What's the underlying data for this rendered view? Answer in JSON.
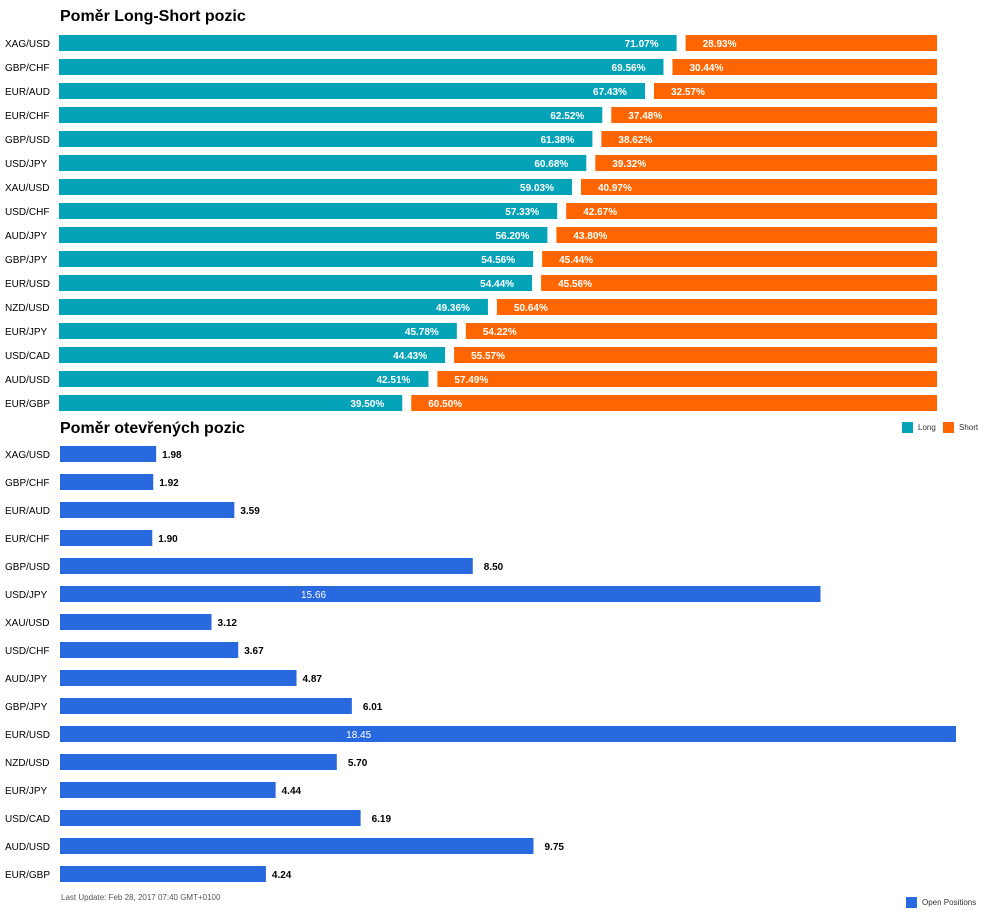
{
  "colors": {
    "long": "#05a3b8",
    "short": "#ff6600",
    "open": "#2869e0"
  },
  "long_short": {
    "title": "Poměr Long-Short pozic"
  },
  "open": {
    "title": "Poměr otevřených pozic"
  },
  "legend": {
    "long": "Long",
    "short": "Short",
    "open": "Open Positions"
  },
  "footer": {
    "last_update": "Last Update: Feb 28, 2017 07:40 GMT+0100"
  },
  "chart_data": [
    {
      "type": "bar",
      "orientation": "horizontal",
      "stacked": true,
      "title": "Poměr Long-Short pozic",
      "categories": [
        "XAG/USD",
        "GBP/CHF",
        "EUR/AUD",
        "EUR/CHF",
        "GBP/USD",
        "USD/JPY",
        "XAU/USD",
        "USD/CHF",
        "AUD/JPY",
        "GBP/JPY",
        "EUR/USD",
        "NZD/USD",
        "EUR/JPY",
        "USD/CAD",
        "AUD/USD",
        "EUR/GBP"
      ],
      "series": [
        {
          "name": "Long",
          "values": [
            71.07,
            69.56,
            67.43,
            62.52,
            61.38,
            60.68,
            59.03,
            57.33,
            56.2,
            54.56,
            54.44,
            49.36,
            45.78,
            44.43,
            42.51,
            39.5
          ],
          "labels": [
            "71.07%",
            "69.56%",
            "67.43%",
            "62.52%",
            "61.38%",
            "60.68%",
            "59.03%",
            "57.33%",
            "56.20%",
            "54.56%",
            "54.44%",
            "49.36%",
            "45.78%",
            "44.43%",
            "42.51%",
            "39.50%"
          ]
        },
        {
          "name": "Short",
          "values": [
            28.93,
            30.44,
            32.57,
            37.48,
            38.62,
            39.32,
            40.97,
            42.67,
            43.8,
            45.44,
            45.56,
            50.64,
            54.22,
            55.57,
            57.49,
            60.5
          ],
          "labels": [
            "28.93%",
            "30.44%",
            "32.57%",
            "37.48%",
            "38.62%",
            "39.32%",
            "40.97%",
            "42.67%",
            "43.80%",
            "45.44%",
            "45.56%",
            "50.64%",
            "54.22%",
            "55.57%",
            "57.49%",
            "60.50%"
          ]
        }
      ],
      "xlim": [
        0,
        100
      ],
      "legend": "top-right"
    },
    {
      "type": "bar",
      "orientation": "horizontal",
      "title": "Poměr otevřených pozic",
      "categories": [
        "XAG/USD",
        "GBP/CHF",
        "EUR/AUD",
        "EUR/CHF",
        "GBP/USD",
        "USD/JPY",
        "XAU/USD",
        "USD/CHF",
        "AUD/JPY",
        "GBP/JPY",
        "EUR/USD",
        "NZD/USD",
        "EUR/JPY",
        "USD/CAD",
        "AUD/USD",
        "EUR/GBP"
      ],
      "series": [
        {
          "name": "Open Positions",
          "values": [
            1.98,
            1.92,
            3.59,
            1.9,
            8.5,
            15.66,
            3.12,
            3.67,
            4.87,
            6.01,
            18.45,
            5.7,
            4.44,
            6.19,
            9.75,
            4.24
          ],
          "labels": [
            "1.98",
            "1.92",
            "3.59",
            "1.90",
            "8.50",
            "15.66",
            "3.12",
            "3.67",
            "4.87",
            "6.01",
            "18.45",
            "5.70",
            "4.44",
            "6.19",
            "9.75",
            "4.24"
          ]
        }
      ],
      "xlim": [
        0,
        18.45
      ],
      "legend": "bottom-right"
    }
  ]
}
